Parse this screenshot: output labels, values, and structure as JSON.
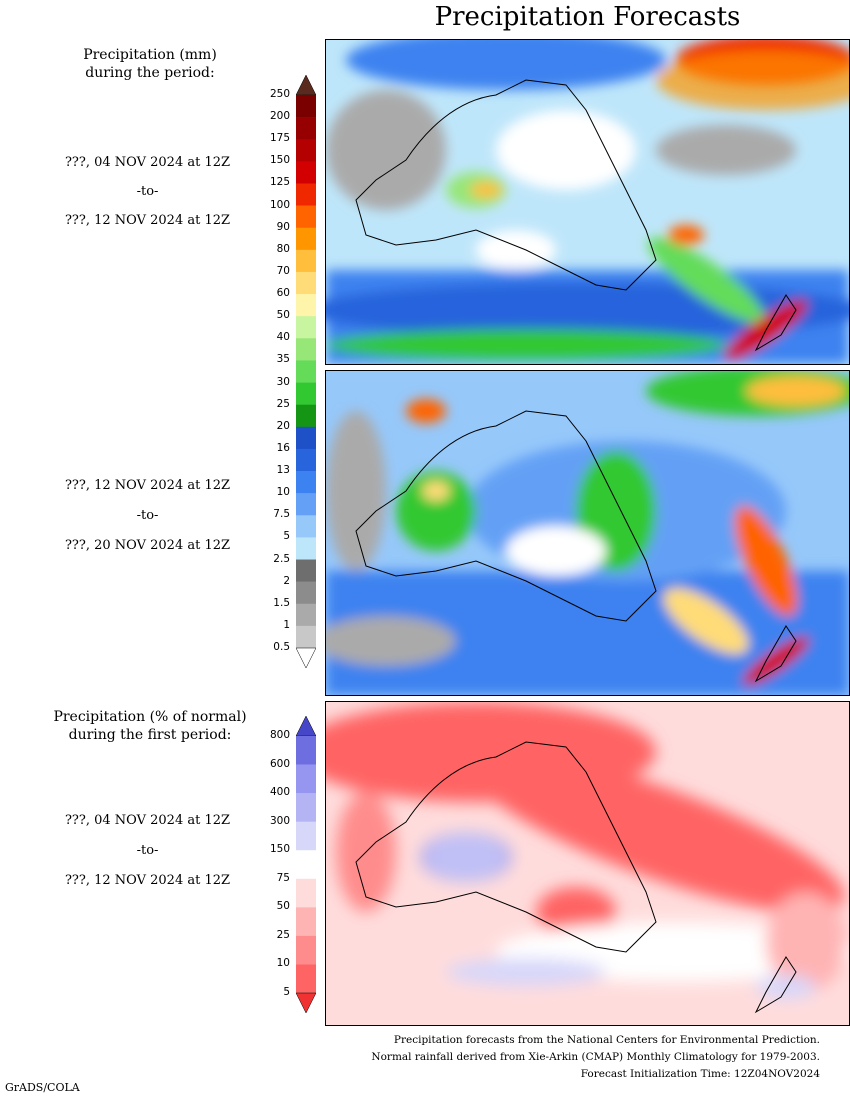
{
  "title": "Precipitation Forecasts",
  "panel1": {
    "label_line1": "Precipitation (mm)",
    "label_line2": "during the period:",
    "date_start": "???, 04 NOV 2024 at 12Z",
    "date_to": "-to-",
    "date_end": "???, 12 NOV 2024 at 12Z"
  },
  "panel2": {
    "date_start": "???, 12 NOV 2024 at 12Z",
    "date_to": "-to-",
    "date_end": "???, 20 NOV 2024 at 12Z"
  },
  "panel3": {
    "label_line1": "Precipitation (% of normal)",
    "label_line2": "during the first period:",
    "date_start": "???, 04 NOV 2024 at 12Z",
    "date_to": "-to-",
    "date_end": "???, 12 NOV 2024 at 12Z"
  },
  "precip_scale": {
    "ticks": [
      "250",
      "200",
      "175",
      "150",
      "125",
      "100",
      "90",
      "80",
      "70",
      "60",
      "50",
      "40",
      "35",
      "30",
      "25",
      "20",
      "16",
      "13",
      "10",
      "7.5",
      "5",
      "2.5",
      "2",
      "1.5",
      "1",
      "0.5"
    ],
    "colors": [
      "#5a2a1e",
      "#7a0000",
      "#960000",
      "#b40000",
      "#d20000",
      "#f02800",
      "#ff6400",
      "#ff9600",
      "#ffbe3c",
      "#ffdc78",
      "#fff5aa",
      "#c8f5a0",
      "#96e678",
      "#64dc5a",
      "#32c832",
      "#149614",
      "#1e50c8",
      "#2864dc",
      "#3c82f0",
      "#64a0f5",
      "#96c8fa",
      "#bee6fa",
      "#6e6e6e",
      "#8c8c8c",
      "#aaaaaa",
      "#c8c8c8",
      "#ffffff"
    ]
  },
  "pct_scale": {
    "ticks": [
      "800",
      "600",
      "400",
      "300",
      "150",
      "75",
      "50",
      "25",
      "10",
      "5"
    ],
    "colors": [
      "#4646c8",
      "#6e6ee0",
      "#9696f0",
      "#b4b4f5",
      "#d7d7fa",
      "#ffffff",
      "#ffdcdc",
      "#ffb4b4",
      "#ff8c8c",
      "#ff6464",
      "#f03232"
    ]
  },
  "footer": {
    "line1": "Precipitation forecasts from the National Centers for Environmental Prediction.",
    "line2": "Normal rainfall derived from Xie-Arkin (CMAP) Monthly Climatology for 1979-2003.",
    "line3": "Forecast Initialization Time: 12Z04NOV2024"
  },
  "credit": "GrADS/COLA"
}
